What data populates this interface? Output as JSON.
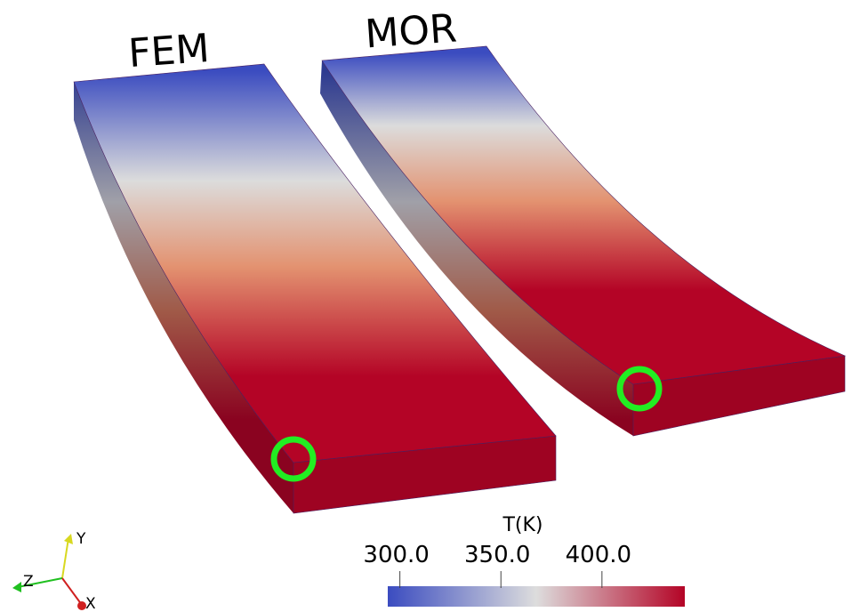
{
  "labels": {
    "left": "FEM",
    "right": "MOR"
  },
  "colorbar": {
    "title": "T(K)",
    "range": [
      294,
      441
    ],
    "ticks": [
      {
        "value": 300,
        "label": "300.0"
      },
      {
        "value": 350,
        "label": "350.0"
      },
      {
        "value": 400,
        "label": "400.0"
      }
    ]
  },
  "axes": {
    "y": "Y",
    "z": "Z",
    "x": "X"
  }
}
